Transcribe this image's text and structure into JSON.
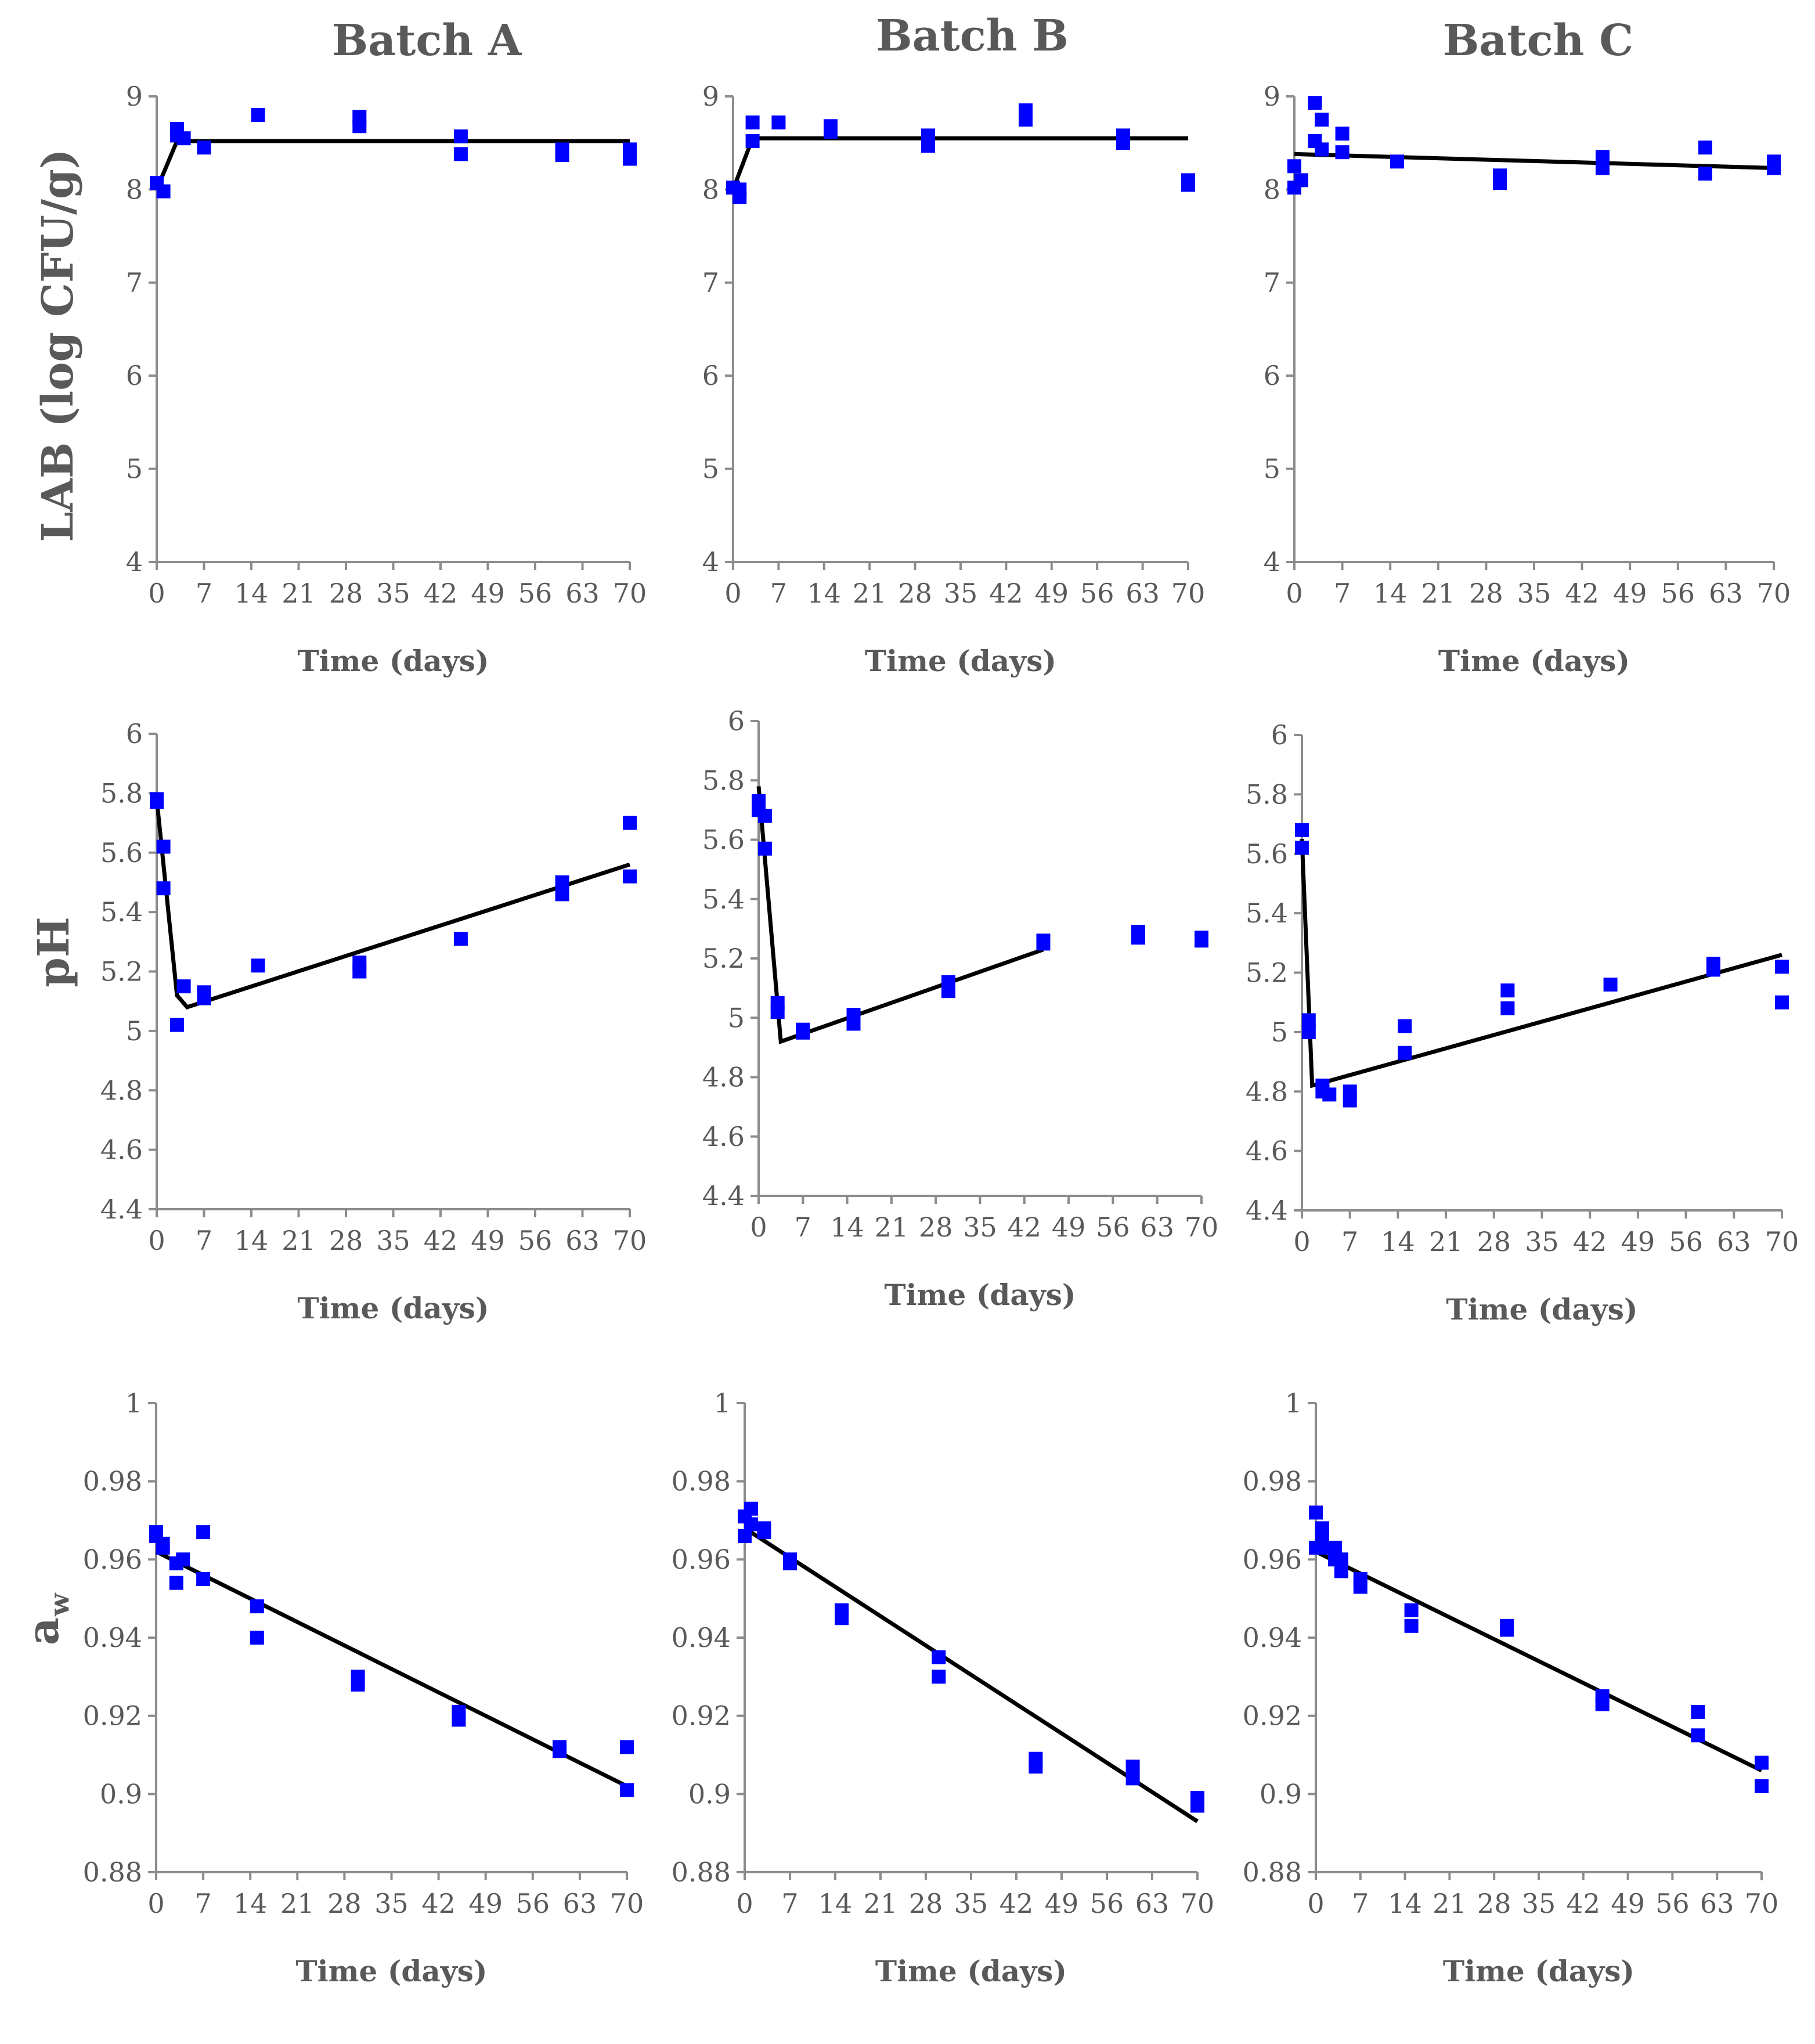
{
  "figure": {
    "column_titles": [
      "Batch A",
      "Batch B",
      "Batch C"
    ],
    "row_labels": [
      "LAB (log CFU/g)",
      "pH",
      "a",
      "w"
    ]
  },
  "colors": {
    "points": "#0000ff",
    "fit_line": "#000000",
    "axis": "#8c8c8c",
    "text": "#595959"
  },
  "chart_data": [
    {
      "id": "lab-a",
      "type": "scatter",
      "title": "Batch A",
      "ylabel": "LAB (log CFU/g)",
      "xlabel": "Time (days)",
      "xlim": [
        0,
        70
      ],
      "ylim": [
        4,
        9
      ],
      "xticks": [
        "0",
        "7",
        "14",
        "21",
        "28",
        "35",
        "42",
        "49",
        "56",
        "63",
        "70"
      ],
      "yticks": [
        "4",
        "5",
        "6",
        "7",
        "8",
        "9"
      ],
      "points": [
        [
          0,
          8.07
        ],
        [
          1,
          7.98
        ],
        [
          3,
          8.65
        ],
        [
          3,
          8.58
        ],
        [
          4,
          8.55
        ],
        [
          7,
          8.45
        ],
        [
          15,
          8.8
        ],
        [
          30,
          8.78
        ],
        [
          30,
          8.68
        ],
        [
          45,
          8.57
        ],
        [
          45,
          8.38
        ],
        [
          60,
          8.43
        ],
        [
          60,
          8.37
        ],
        [
          70,
          8.43
        ],
        [
          70,
          8.33
        ]
      ],
      "fit": [
        [
          0,
          8.0
        ],
        [
          3,
          8.52
        ],
        [
          70,
          8.52
        ]
      ]
    },
    {
      "id": "lab-b",
      "type": "scatter",
      "title": "Batch B",
      "xlabel": "Time (days)",
      "xlim": [
        0,
        70
      ],
      "ylim": [
        4,
        9
      ],
      "xticks": [
        "0",
        "7",
        "14",
        "21",
        "28",
        "35",
        "42",
        "49",
        "56",
        "63",
        "70"
      ],
      "yticks": [
        "4",
        "5",
        "6",
        "7",
        "8",
        "9"
      ],
      "points": [
        [
          0,
          8.02
        ],
        [
          1,
          7.92
        ],
        [
          1,
          8.0
        ],
        [
          3,
          8.72
        ],
        [
          3,
          8.52
        ],
        [
          7,
          8.72
        ],
        [
          15,
          8.68
        ],
        [
          15,
          8.62
        ],
        [
          30,
          8.58
        ],
        [
          30,
          8.47
        ],
        [
          45,
          8.85
        ],
        [
          45,
          8.75
        ],
        [
          60,
          8.58
        ],
        [
          60,
          8.5
        ],
        [
          70,
          8.1
        ],
        [
          70,
          8.05
        ]
      ],
      "fit": [
        [
          0,
          8.0
        ],
        [
          3,
          8.55
        ],
        [
          70,
          8.55
        ]
      ]
    },
    {
      "id": "lab-c",
      "type": "scatter",
      "title": "Batch C",
      "xlabel": "Time (days)",
      "xlim": [
        0,
        70
      ],
      "ylim": [
        4,
        9
      ],
      "xticks": [
        "0",
        "7",
        "14",
        "21",
        "28",
        "35",
        "42",
        "49",
        "56",
        "63",
        "70"
      ],
      "yticks": [
        "4",
        "5",
        "6",
        "7",
        "8",
        "9"
      ],
      "points": [
        [
          0,
          8.25
        ],
        [
          0,
          8.02
        ],
        [
          1,
          8.1
        ],
        [
          3,
          8.93
        ],
        [
          3,
          8.52
        ],
        [
          4,
          8.75
        ],
        [
          4,
          8.43
        ],
        [
          7,
          8.6
        ],
        [
          7,
          8.4
        ],
        [
          15,
          8.3
        ],
        [
          30,
          8.15
        ],
        [
          30,
          8.07
        ],
        [
          45,
          8.35
        ],
        [
          45,
          8.23
        ],
        [
          60,
          8.45
        ],
        [
          60,
          8.17
        ],
        [
          70,
          8.3
        ],
        [
          70,
          8.23
        ]
      ],
      "fit": [
        [
          0,
          8.38
        ],
        [
          70,
          8.23
        ]
      ]
    },
    {
      "id": "ph-a",
      "type": "scatter",
      "ylabel": "pH",
      "xlabel": "Time (days)",
      "xlim": [
        0,
        70
      ],
      "ylim": [
        4.4,
        6
      ],
      "xticks": [
        "0",
        "7",
        "14",
        "21",
        "28",
        "35",
        "42",
        "49",
        "56",
        "63",
        "70"
      ],
      "yticks": [
        "4.4",
        "4.6",
        "4.8",
        "5",
        "5.2",
        "5.4",
        "5.6",
        "5.8",
        "6"
      ],
      "points": [
        [
          0,
          5.78
        ],
        [
          0,
          5.77
        ],
        [
          1,
          5.62
        ],
        [
          1,
          5.48
        ],
        [
          3,
          5.02
        ],
        [
          4,
          5.15
        ],
        [
          7,
          5.13
        ],
        [
          7,
          5.11
        ],
        [
          15,
          5.22
        ],
        [
          30,
          5.23
        ],
        [
          30,
          5.2
        ],
        [
          45,
          5.31
        ],
        [
          60,
          5.5
        ],
        [
          60,
          5.46
        ],
        [
          70,
          5.7
        ],
        [
          70,
          5.52
        ]
      ],
      "fit": [
        [
          0,
          5.78
        ],
        [
          3,
          5.12
        ],
        [
          4.5,
          5.08
        ],
        [
          70,
          5.56
        ]
      ]
    },
    {
      "id": "ph-b",
      "type": "scatter",
      "xlabel": "Time (days)",
      "xlim": [
        0,
        70
      ],
      "ylim": [
        4.4,
        6
      ],
      "xticks": [
        "0",
        "7",
        "14",
        "21",
        "28",
        "35",
        "42",
        "49",
        "56",
        "63",
        "70"
      ],
      "yticks": [
        "4.4",
        "4.6",
        "4.8",
        "5",
        "5.2",
        "5.4",
        "5.6",
        "5.8",
        "6"
      ],
      "points": [
        [
          0,
          5.73
        ],
        [
          0,
          5.7
        ],
        [
          1,
          5.68
        ],
        [
          1,
          5.57
        ],
        [
          3,
          5.05
        ],
        [
          3,
          5.02
        ],
        [
          7,
          4.96
        ],
        [
          7,
          4.95
        ],
        [
          15,
          5.01
        ],
        [
          15,
          4.98
        ],
        [
          30,
          5.12
        ],
        [
          30,
          5.09
        ],
        [
          45,
          5.26
        ],
        [
          45,
          5.25
        ],
        [
          60,
          5.29
        ],
        [
          60,
          5.27
        ],
        [
          70,
          5.27
        ],
        [
          70,
          5.26
        ]
      ],
      "fit": [
        [
          0,
          5.78
        ],
        [
          3.5,
          4.92
        ],
        [
          45,
          5.23
        ]
      ]
    },
    {
      "id": "ph-c",
      "type": "scatter",
      "xlabel": "Time (days)",
      "xlim": [
        0,
        70
      ],
      "ylim": [
        4.4,
        6
      ],
      "xticks": [
        "0",
        "7",
        "14",
        "21",
        "28",
        "35",
        "42",
        "49",
        "56",
        "63",
        "70"
      ],
      "yticks": [
        "4.4",
        "4.6",
        "4.8",
        "5",
        "5.2",
        "5.4",
        "5.6",
        "5.8",
        "6"
      ],
      "points": [
        [
          0,
          5.68
        ],
        [
          0,
          5.62
        ],
        [
          1,
          5.04
        ],
        [
          1,
          5.0
        ],
        [
          3,
          4.8
        ],
        [
          3,
          4.82
        ],
        [
          4,
          4.79
        ],
        [
          7,
          4.8
        ],
        [
          7,
          4.77
        ],
        [
          15,
          5.02
        ],
        [
          15,
          4.93
        ],
        [
          30,
          5.14
        ],
        [
          30,
          5.08
        ],
        [
          45,
          5.16
        ],
        [
          60,
          5.23
        ],
        [
          60,
          5.21
        ],
        [
          70,
          5.22
        ],
        [
          70,
          5.1
        ]
      ],
      "fit": [
        [
          0,
          5.65
        ],
        [
          1.5,
          4.82
        ],
        [
          70,
          5.26
        ]
      ]
    },
    {
      "id": "aw-a",
      "type": "scatter",
      "ylabel": "aw",
      "xlabel": "Time (days)",
      "xlim": [
        0,
        70
      ],
      "ylim": [
        0.88,
        1
      ],
      "xticks": [
        "0",
        "7",
        "14",
        "21",
        "28",
        "35",
        "42",
        "49",
        "56",
        "63",
        "70"
      ],
      "yticks": [
        "0.88",
        "0.9",
        "0.92",
        "0.94",
        "0.96",
        "0.98",
        "1"
      ],
      "points": [
        [
          0,
          0.967
        ],
        [
          0,
          0.966
        ],
        [
          1,
          0.964
        ],
        [
          1,
          0.963
        ],
        [
          3,
          0.959
        ],
        [
          3,
          0.954
        ],
        [
          4,
          0.96
        ],
        [
          7,
          0.967
        ],
        [
          7,
          0.955
        ],
        [
          15,
          0.948
        ],
        [
          15,
          0.94
        ],
        [
          30,
          0.93
        ],
        [
          30,
          0.928
        ],
        [
          45,
          0.921
        ],
        [
          45,
          0.919
        ],
        [
          60,
          0.912
        ],
        [
          60,
          0.911
        ],
        [
          70,
          0.912
        ],
        [
          70,
          0.901
        ]
      ],
      "fit": [
        [
          0,
          0.962
        ],
        [
          70,
          0.902
        ]
      ]
    },
    {
      "id": "aw-b",
      "type": "scatter",
      "xlabel": "Time (days)",
      "xlim": [
        0,
        70
      ],
      "ylim": [
        0.88,
        1
      ],
      "xticks": [
        "0",
        "7",
        "14",
        "21",
        "28",
        "35",
        "42",
        "49",
        "56",
        "63",
        "70"
      ],
      "yticks": [
        "0.88",
        "0.9",
        "0.92",
        "0.94",
        "0.96",
        "0.98",
        "1"
      ],
      "points": [
        [
          0,
          0.971
        ],
        [
          0,
          0.966
        ],
        [
          1,
          0.973
        ],
        [
          1,
          0.969
        ],
        [
          3,
          0.968
        ],
        [
          3,
          0.967
        ],
        [
          7,
          0.96
        ],
        [
          7,
          0.959
        ],
        [
          15,
          0.947
        ],
        [
          15,
          0.945
        ],
        [
          30,
          0.935
        ],
        [
          30,
          0.93
        ],
        [
          45,
          0.909
        ],
        [
          45,
          0.907
        ],
        [
          60,
          0.907
        ],
        [
          60,
          0.904
        ],
        [
          70,
          0.899
        ],
        [
          70,
          0.897
        ]
      ],
      "fit": [
        [
          0,
          0.968
        ],
        [
          70,
          0.893
        ]
      ]
    },
    {
      "id": "aw-c",
      "type": "scatter",
      "xlabel": "Time (days)",
      "xlim": [
        0,
        70
      ],
      "ylim": [
        0.88,
        1
      ],
      "xticks": [
        "0",
        "7",
        "14",
        "21",
        "28",
        "35",
        "42",
        "49",
        "56",
        "63",
        "70"
      ],
      "yticks": [
        "0.88",
        "0.9",
        "0.92",
        "0.94",
        "0.96",
        "0.98",
        "1"
      ],
      "points": [
        [
          0,
          0.972
        ],
        [
          0,
          0.963
        ],
        [
          1,
          0.968
        ],
        [
          1,
          0.965
        ],
        [
          2,
          0.963
        ],
        [
          3,
          0.963
        ],
        [
          3,
          0.96
        ],
        [
          4,
          0.96
        ],
        [
          4,
          0.957
        ],
        [
          7,
          0.955
        ],
        [
          7,
          0.953
        ],
        [
          15,
          0.947
        ],
        [
          15,
          0.943
        ],
        [
          30,
          0.943
        ],
        [
          30,
          0.942
        ],
        [
          45,
          0.925
        ],
        [
          45,
          0.923
        ],
        [
          60,
          0.921
        ],
        [
          60,
          0.915
        ],
        [
          70,
          0.908
        ],
        [
          70,
          0.902
        ]
      ],
      "fit": [
        [
          0,
          0.962
        ],
        [
          70,
          0.906
        ]
      ]
    }
  ]
}
